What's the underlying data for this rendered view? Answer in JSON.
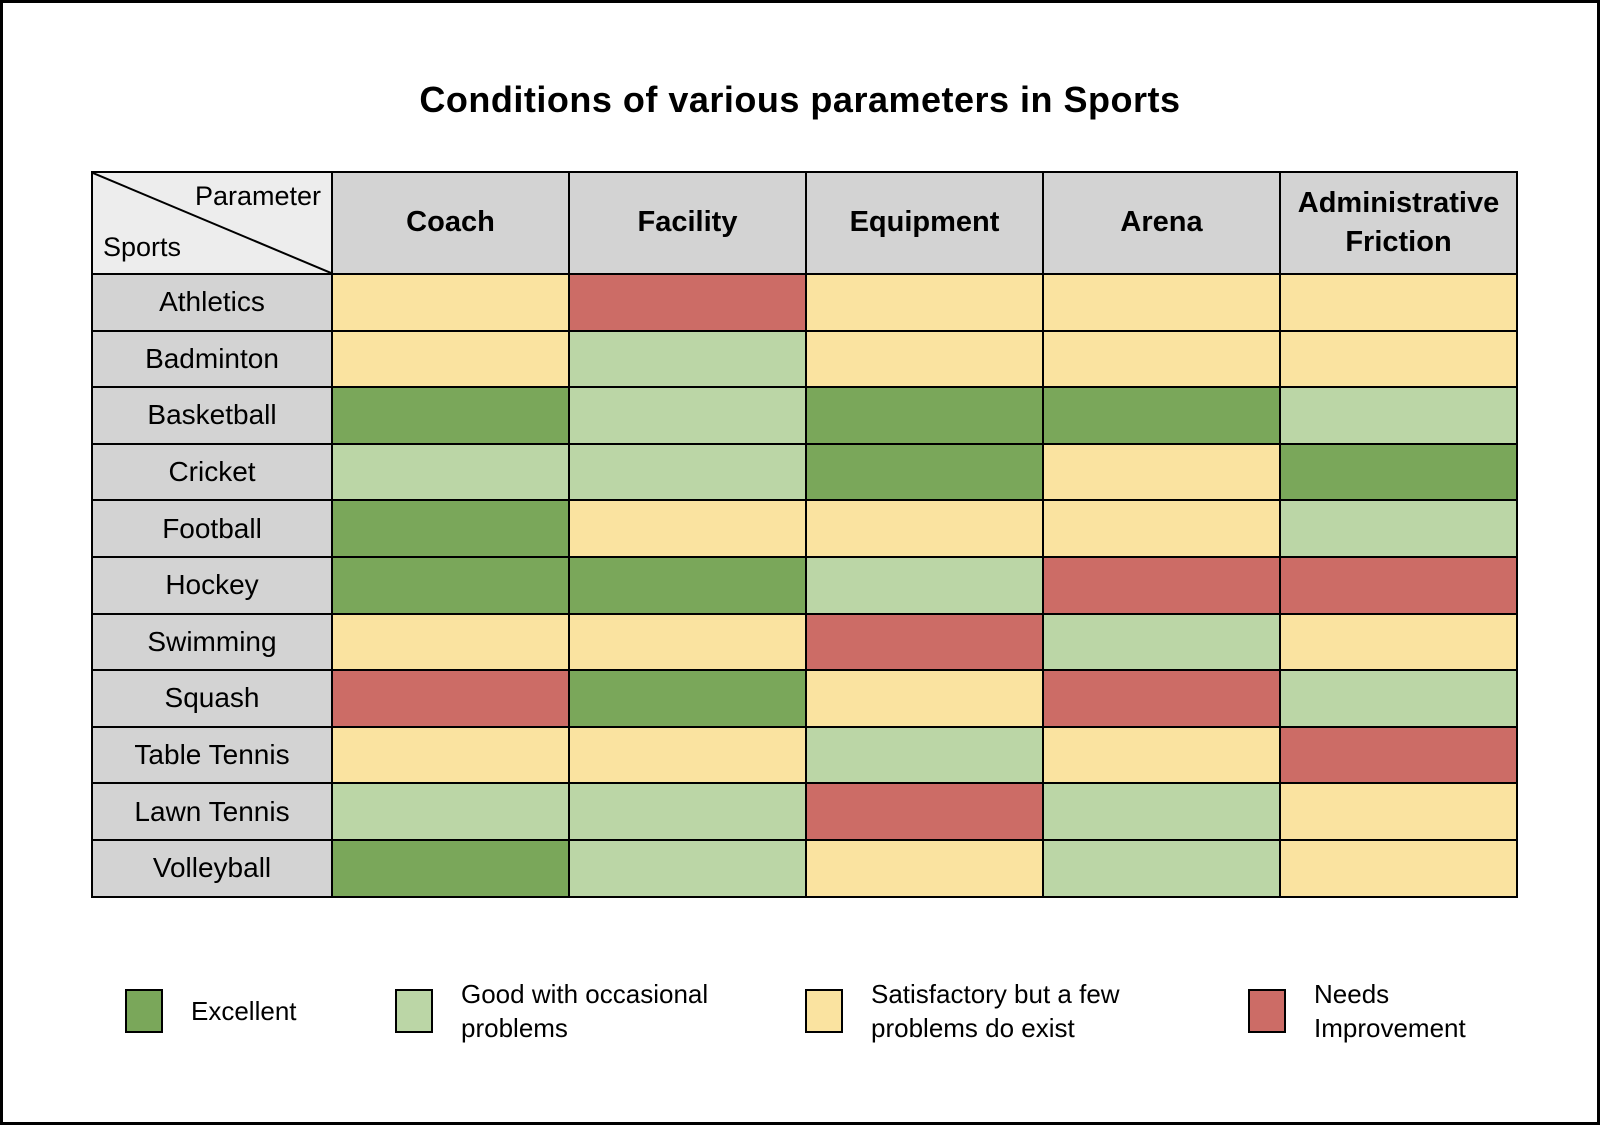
{
  "title": "Conditions of various parameters in Sports",
  "corner": {
    "top": "Parameter",
    "bottom": "Sports"
  },
  "colors": {
    "header_bg": "#d3d3d3",
    "corner_bg": "#ededed",
    "border": "#000000"
  },
  "chart_data": {
    "type": "heatmap",
    "title": "Conditions of various parameters in Sports",
    "columns": [
      "Coach",
      "Facility",
      "Equipment",
      "Arena",
      "Administrative Friction"
    ],
    "rows": [
      "Athletics",
      "Badminton",
      "Basketball",
      "Cricket",
      "Football",
      "Hockey",
      "Swimming",
      "Squash",
      "Table Tennis",
      "Lawn Tennis",
      "Volleyball"
    ],
    "values": [
      [
        "satisfactory",
        "needs_improvement",
        "satisfactory",
        "satisfactory",
        "satisfactory"
      ],
      [
        "satisfactory",
        "good",
        "satisfactory",
        "satisfactory",
        "satisfactory"
      ],
      [
        "excellent",
        "good",
        "excellent",
        "excellent",
        "good"
      ],
      [
        "good",
        "good",
        "excellent",
        "satisfactory",
        "excellent"
      ],
      [
        "excellent",
        "satisfactory",
        "satisfactory",
        "satisfactory",
        "good"
      ],
      [
        "excellent",
        "excellent",
        "good",
        "needs_improvement",
        "needs_improvement"
      ],
      [
        "satisfactory",
        "satisfactory",
        "needs_improvement",
        "good",
        "satisfactory"
      ],
      [
        "needs_improvement",
        "excellent",
        "satisfactory",
        "needs_improvement",
        "good"
      ],
      [
        "satisfactory",
        "satisfactory",
        "good",
        "satisfactory",
        "needs_improvement"
      ],
      [
        "good",
        "good",
        "needs_improvement",
        "good",
        "satisfactory"
      ],
      [
        "excellent",
        "good",
        "satisfactory",
        "good",
        "satisfactory"
      ]
    ],
    "legend": [
      {
        "value": "excellent",
        "label": "Excellent",
        "label_lines": [
          "Excellent"
        ],
        "color": "#7aa75a"
      },
      {
        "value": "good",
        "label": "Good with occasional problems",
        "label_lines": [
          "Good with occasional",
          "problems"
        ],
        "color": "#bbd6a6"
      },
      {
        "value": "satisfactory",
        "label": "Satisfactory but a few problems do exist",
        "label_lines": [
          "Satisfactory but a few",
          "problems do exist"
        ],
        "color": "#fae3a0"
      },
      {
        "value": "needs_improvement",
        "label": "Needs Improvement",
        "label_lines": [
          "Needs",
          "Improvement"
        ],
        "color": "#cc6c66"
      }
    ],
    "legend_position": "bottom"
  }
}
